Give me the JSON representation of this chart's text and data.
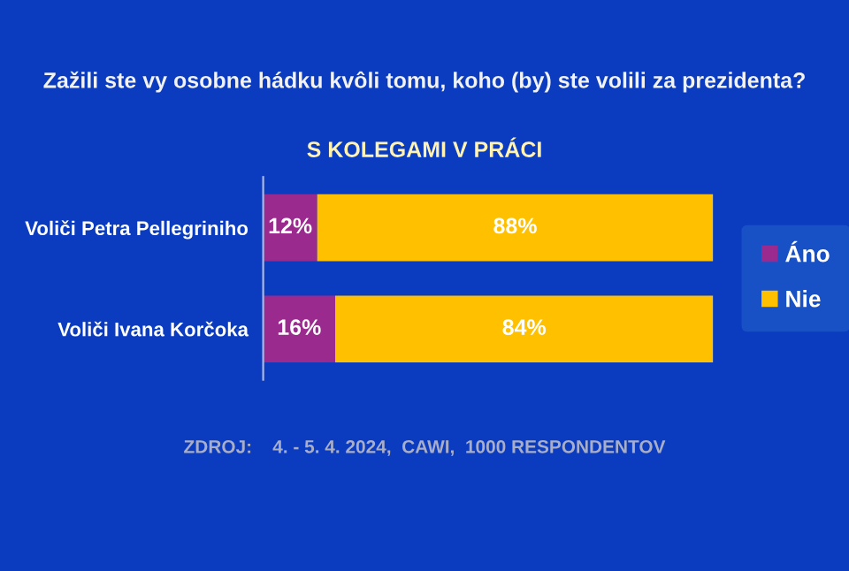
{
  "chart_data": {
    "type": "bar",
    "orientation": "horizontal",
    "stacked": true,
    "title": "Zažili ste vy osobne hádku kvôli tomu, koho (by) ste volili za prezidenta?",
    "subtitle": "S KOLEGAMI V PRÁCI",
    "categories": [
      "Voliči Petra Pellegriniho",
      "Voliči Ivana Korčoka"
    ],
    "series": [
      {
        "name": "Áno",
        "color": "#9b2a8e",
        "values": [
          12,
          16
        ],
        "value_labels": [
          "12%",
          "16%"
        ]
      },
      {
        "name": "Nie",
        "color": "#ffc000",
        "values": [
          88,
          84
        ],
        "value_labels": [
          "88%",
          "84%"
        ]
      }
    ],
    "xlim": [
      0,
      100
    ],
    "tick_labels": "y",
    "legend": "right",
    "grid": false,
    "annotations": [
      "ZDROJ:    4. - 5. 4. 2024,  CAWI,  1000 RESPONDENTOV"
    ]
  }
}
